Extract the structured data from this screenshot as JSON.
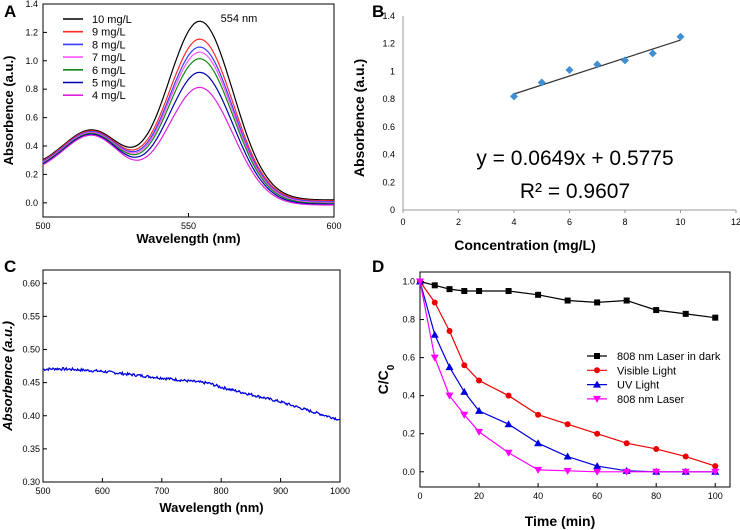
{
  "colors": {
    "series_A": [
      "#000000",
      "#ff2a2a",
      "#3c3cff",
      "#ff55ff",
      "#118811",
      "#0000aa",
      "#dd22dd"
    ],
    "blue": "#0000dd",
    "red": "#ee0000",
    "magenta": "#ff00ff",
    "black": "#000000",
    "diamond": "#3f8fd2"
  },
  "chart_data": [
    {
      "panel": "A",
      "type": "line",
      "xlabel": "Wavelength (nm)",
      "ylabel": "Absorbence (a.u.)",
      "xlim": [
        500,
        600
      ],
      "ylim": [
        -0.1,
        1.4
      ],
      "xticks": [
        "500",
        "550",
        "600"
      ],
      "yticks": [
        "0.0",
        "0.2",
        "0.4",
        "0.6",
        "0.8",
        "1.0",
        "1.2",
        "1.4"
      ],
      "annotation": "554 nm",
      "series": [
        {
          "name": "10 mg/L",
          "peak": 1.25
        },
        {
          "name": "9 mg/L",
          "peak": 1.13
        },
        {
          "name": "8 mg/L",
          "peak": 1.08
        },
        {
          "name": "7 mg/L",
          "peak": 1.05
        },
        {
          "name": "6 mg/L",
          "peak": 1.01
        },
        {
          "name": "5 mg/L",
          "peak": 0.92
        },
        {
          "name": "4 mg/L",
          "peak": 0.82
        }
      ]
    },
    {
      "panel": "B",
      "type": "scatter",
      "xlabel": "Concentration (mg/L)",
      "ylabel": "Absorbence (a.u.)",
      "xlim": [
        0,
        12
      ],
      "ylim": [
        0,
        1.4
      ],
      "xticks": [
        "0",
        "2",
        "4",
        "6",
        "8",
        "10",
        "12"
      ],
      "yticks": [
        "0",
        "0.2",
        "0.4",
        "0.6",
        "0.8",
        "1",
        "1.2",
        "1.4"
      ],
      "x": [
        4,
        5,
        6,
        7,
        8,
        9,
        10
      ],
      "y": [
        0.82,
        0.92,
        1.01,
        1.05,
        1.08,
        1.13,
        1.25
      ],
      "fit": {
        "slope": 0.0649,
        "intercept": 0.5775
      },
      "equation": "y = 0.0649x + 0.5775",
      "r2": "R² = 0.9607"
    },
    {
      "panel": "C",
      "type": "line",
      "xlabel": "Wavelength (nm)",
      "ylabel": "Absorbence (a.u.)",
      "xlim": [
        500,
        1000
      ],
      "ylim": [
        0.3,
        0.62
      ],
      "xticks": [
        "500",
        "600",
        "700",
        "800",
        "900",
        "1000"
      ],
      "yticks": [
        "0.30",
        "0.35",
        "0.40",
        "0.45",
        "0.50",
        "0.55",
        "0.60"
      ],
      "x": [
        500,
        520,
        550,
        600,
        650,
        700,
        750,
        780,
        800,
        850,
        900,
        950,
        1000
      ],
      "y": [
        0.47,
        0.471,
        0.47,
        0.467,
        0.462,
        0.457,
        0.452,
        0.449,
        0.443,
        0.432,
        0.421,
        0.407,
        0.394
      ]
    },
    {
      "panel": "D",
      "type": "line",
      "xlabel": "Time (min)",
      "ylabel": "C/C0",
      "xlim": [
        0,
        105
      ],
      "ylim": [
        -0.08,
        1.05
      ],
      "xticks": [
        "0",
        "20",
        "40",
        "60",
        "80",
        "100"
      ],
      "yticks": [
        "0.0",
        "0.2",
        "0.4",
        "0.6",
        "0.8",
        "1.0"
      ],
      "series": [
        {
          "name": "808 nm Laser in dark",
          "marker": "square",
          "x": [
            0,
            5,
            10,
            15,
            20,
            30,
            40,
            50,
            60,
            70,
            80,
            90,
            100
          ],
          "y": [
            1.0,
            0.98,
            0.96,
            0.95,
            0.95,
            0.95,
            0.93,
            0.9,
            0.89,
            0.9,
            0.85,
            0.83,
            0.81
          ]
        },
        {
          "name": "Visible Light",
          "marker": "circle",
          "x": [
            0,
            5,
            10,
            15,
            20,
            30,
            40,
            50,
            60,
            70,
            80,
            90,
            100
          ],
          "y": [
            1.0,
            0.89,
            0.74,
            0.56,
            0.48,
            0.4,
            0.3,
            0.25,
            0.2,
            0.15,
            0.12,
            0.08,
            0.03
          ]
        },
        {
          "name": "UV Light",
          "marker": "triangle-up",
          "x": [
            0,
            5,
            10,
            15,
            20,
            30,
            40,
            50,
            60,
            70,
            80,
            90,
            100
          ],
          "y": [
            1.0,
            0.72,
            0.55,
            0.42,
            0.32,
            0.25,
            0.15,
            0.08,
            0.03,
            0.005,
            0.0,
            0.0,
            0.0
          ]
        },
        {
          "name": "808 nm Laser",
          "marker": "triangle-down",
          "x": [
            0,
            5,
            10,
            15,
            20,
            30,
            40,
            50,
            60,
            70,
            80,
            90,
            100
          ],
          "y": [
            1.0,
            0.6,
            0.4,
            0.3,
            0.21,
            0.1,
            0.01,
            0.005,
            0.0,
            0.0,
            0.0,
            0.0,
            0.0
          ]
        }
      ]
    }
  ],
  "panels": {
    "a": "A",
    "b": "B",
    "c": "C",
    "d": "D"
  }
}
